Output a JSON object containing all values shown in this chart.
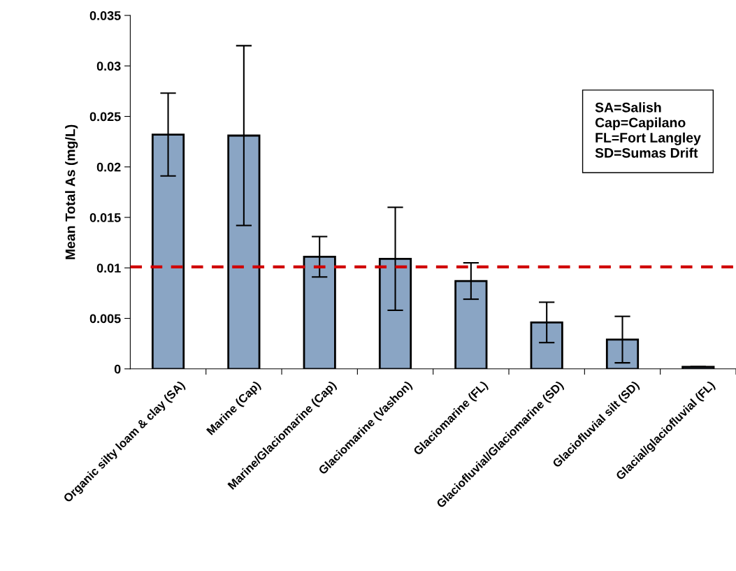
{
  "chart_data": {
    "type": "bar",
    "ylabel": "Mean Total As (mg/L)",
    "categories": [
      "Organic silty loam & clay (SA)",
      "Marine (Cap)",
      "Marine/Glaciomarine (Cap)",
      "Glaciomarine (Vashon)",
      "Glaciomarine (FL)",
      "Glaciofluvial/Glaciomarine (SD)",
      "Glaciofluvial silt (SD)",
      "Glacial/glaciofluvial (FL)"
    ],
    "values": [
      0.0232,
      0.0231,
      0.0111,
      0.0109,
      0.0087,
      0.0046,
      0.0029,
      0.0002
    ],
    "errors": [
      0.0041,
      0.0089,
      0.002,
      0.0051,
      0.0018,
      0.002,
      0.0023,
      null
    ],
    "color": "#8aa5c4",
    "ylim": [
      0,
      0.035
    ],
    "yticks": [
      0,
      0.005,
      0.01,
      0.015,
      0.02,
      0.025,
      0.03,
      0.035
    ],
    "ref_lines": [
      {
        "axis": "y",
        "value": 0.0101,
        "color": "#d00000",
        "line_style": "dashed"
      }
    ],
    "annotations": [
      "SA=Salish\nCap=Capilano\nFL=Fort Langley\nSD=Sumas Drift"
    ],
    "grid": false,
    "legend": false
  }
}
